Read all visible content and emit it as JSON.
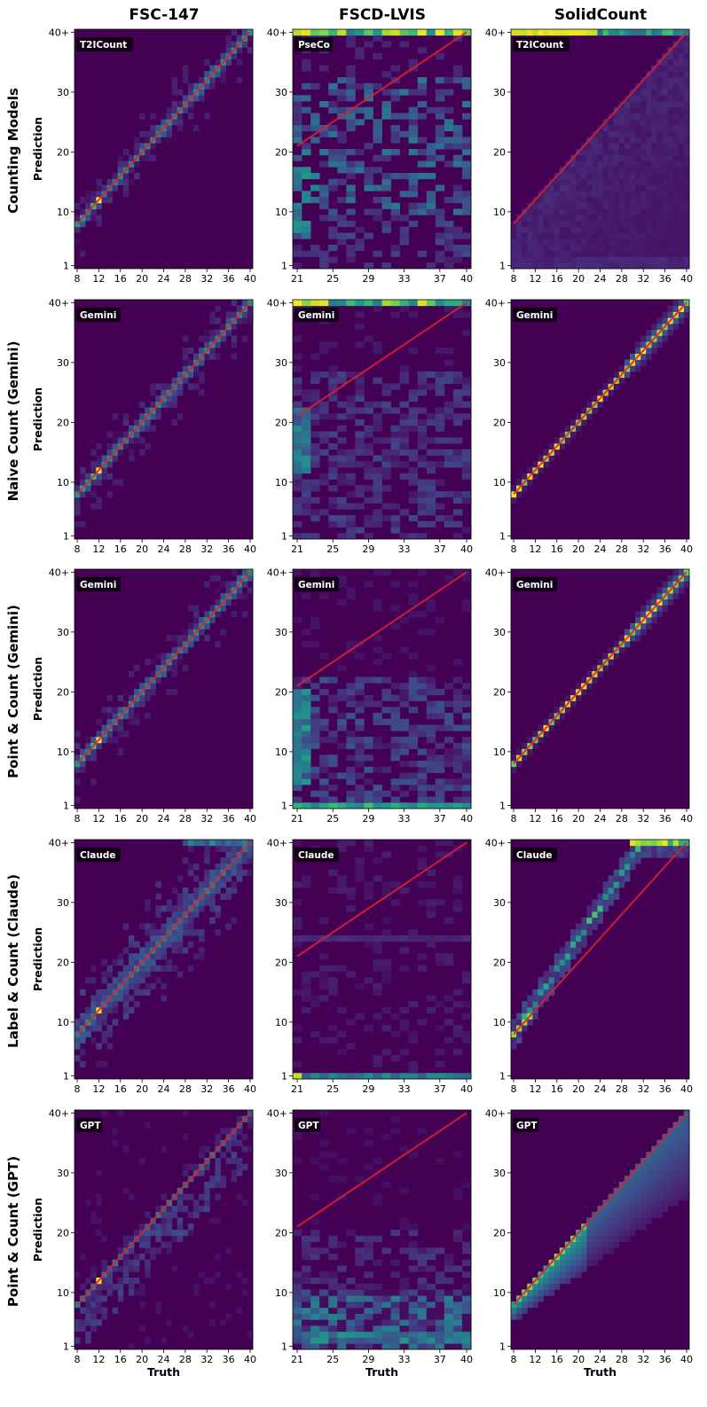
{
  "figure": {
    "column_titles": [
      "FSC-147",
      "FSCD-LVIS",
      "SolidCount"
    ],
    "row_labels": [
      "Counting Models",
      "Naive Count (Gemini)",
      "Point & Count (Gemini)",
      "Label & Count (Claude)",
      "Point & Count (GPT)"
    ],
    "ylabel": "Prediction",
    "xlabel": "Truth",
    "colors": {
      "background": "#440154",
      "diagonal": "#dc2031",
      "badge_bg": "#000000"
    }
  },
  "chart_data": [
    {
      "type": "heatmap",
      "row": 0,
      "col": 0,
      "model": "T2ICount",
      "dataset": "FSC-147",
      "title": "",
      "xlabel": "",
      "ylabel": "Prediction",
      "x_range": [
        8,
        40
      ],
      "y_range": [
        1,
        40
      ],
      "x_ticks": [
        "8",
        "12",
        "16",
        "20",
        "24",
        "28",
        "32",
        "36",
        "40"
      ],
      "y_ticks": [
        "1",
        "10",
        "20",
        "30",
        "40+"
      ],
      "pattern": "diagonal_tight",
      "peak": 12
    },
    {
      "type": "heatmap",
      "row": 0,
      "col": 1,
      "model": "PseCo",
      "dataset": "FSCD-LVIS",
      "title": "",
      "xlabel": "",
      "ylabel": "",
      "x_range": [
        21,
        40
      ],
      "y_range": [
        1,
        40
      ],
      "x_ticks": [
        "21",
        "25",
        "29",
        "33",
        "37",
        "40"
      ],
      "y_ticks": [
        "1",
        "10",
        "20",
        "30",
        "40+"
      ],
      "pattern": "scatter_overflow"
    },
    {
      "type": "heatmap",
      "row": 0,
      "col": 2,
      "model": "T2ICount",
      "dataset": "SolidCount",
      "title": "",
      "xlabel": "",
      "ylabel": "",
      "x_range": [
        8,
        40
      ],
      "y_range": [
        1,
        40
      ],
      "x_ticks": [
        "8",
        "12",
        "16",
        "20",
        "24",
        "28",
        "32",
        "36",
        "40"
      ],
      "y_ticks": [
        "1",
        "10",
        "20",
        "30",
        "40+"
      ],
      "pattern": "diffuse_overflow"
    },
    {
      "type": "heatmap",
      "row": 1,
      "col": 0,
      "model": "Gemini",
      "dataset": "FSC-147",
      "title": "",
      "xlabel": "",
      "ylabel": "Prediction",
      "x_range": [
        8,
        40
      ],
      "y_range": [
        1,
        40
      ],
      "x_ticks": [
        "8",
        "12",
        "16",
        "20",
        "24",
        "28",
        "32",
        "36",
        "40"
      ],
      "y_ticks": [
        "1",
        "10",
        "20",
        "30",
        "40+"
      ],
      "pattern": "diagonal_tight",
      "peak": 12
    },
    {
      "type": "heatmap",
      "row": 1,
      "col": 1,
      "model": "Gemini",
      "dataset": "FSCD-LVIS",
      "title": "",
      "xlabel": "",
      "ylabel": "",
      "x_range": [
        21,
        40
      ],
      "y_range": [
        1,
        40
      ],
      "x_ticks": [
        "21",
        "25",
        "29",
        "33",
        "37",
        "40"
      ],
      "y_ticks": [
        "1",
        "10",
        "20",
        "30",
        "40+"
      ],
      "pattern": "under_overflow"
    },
    {
      "type": "heatmap",
      "row": 1,
      "col": 2,
      "model": "Gemini",
      "dataset": "SolidCount",
      "title": "",
      "xlabel": "",
      "ylabel": "",
      "x_range": [
        8,
        40
      ],
      "y_range": [
        1,
        40
      ],
      "x_ticks": [
        "8",
        "12",
        "16",
        "20",
        "24",
        "28",
        "32",
        "36",
        "40"
      ],
      "y_ticks": [
        "1",
        "10",
        "20",
        "30",
        "40+"
      ],
      "pattern": "diagonal_perfect"
    },
    {
      "type": "heatmap",
      "row": 2,
      "col": 0,
      "model": "Gemini",
      "dataset": "FSC-147",
      "title": "",
      "xlabel": "",
      "ylabel": "Prediction",
      "x_range": [
        8,
        40
      ],
      "y_range": [
        1,
        40
      ],
      "x_ticks": [
        "8",
        "12",
        "16",
        "20",
        "24",
        "28",
        "32",
        "36",
        "40"
      ],
      "y_ticks": [
        "1",
        "10",
        "20",
        "30",
        "40+"
      ],
      "pattern": "diagonal_tight",
      "peak": 12
    },
    {
      "type": "heatmap",
      "row": 2,
      "col": 1,
      "model": "Gemini",
      "dataset": "FSCD-LVIS",
      "title": "",
      "xlabel": "",
      "ylabel": "",
      "x_range": [
        21,
        40
      ],
      "y_range": [
        1,
        40
      ],
      "x_ticks": [
        "21",
        "25",
        "29",
        "33",
        "37",
        "40"
      ],
      "y_ticks": [
        "1",
        "10",
        "20",
        "30",
        "40+"
      ],
      "pattern": "under_one"
    },
    {
      "type": "heatmap",
      "row": 2,
      "col": 2,
      "model": "Gemini",
      "dataset": "SolidCount",
      "title": "",
      "xlabel": "",
      "ylabel": "",
      "x_range": [
        8,
        40
      ],
      "y_range": [
        1,
        40
      ],
      "x_ticks": [
        "8",
        "12",
        "16",
        "20",
        "24",
        "28",
        "32",
        "36",
        "40"
      ],
      "y_ticks": [
        "1",
        "10",
        "20",
        "30",
        "40+"
      ],
      "pattern": "diagonal_perfect"
    },
    {
      "type": "heatmap",
      "row": 3,
      "col": 0,
      "model": "Claude",
      "dataset": "FSC-147",
      "title": "",
      "xlabel": "",
      "ylabel": "Prediction",
      "x_range": [
        8,
        40
      ],
      "y_range": [
        1,
        40
      ],
      "x_ticks": [
        "8",
        "12",
        "16",
        "20",
        "24",
        "28",
        "32",
        "36",
        "40"
      ],
      "y_ticks": [
        "1",
        "10",
        "20",
        "30",
        "40+"
      ],
      "pattern": "diagonal_noisy"
    },
    {
      "type": "heatmap",
      "row": 3,
      "col": 1,
      "model": "Claude",
      "dataset": "FSCD-LVIS",
      "title": "",
      "xlabel": "",
      "ylabel": "",
      "x_range": [
        21,
        40
      ],
      "y_range": [
        1,
        40
      ],
      "x_ticks": [
        "21",
        "25",
        "29",
        "33",
        "37",
        "40"
      ],
      "y_ticks": [
        "1",
        "10",
        "20",
        "30",
        "40+"
      ],
      "pattern": "under_one_sparse"
    },
    {
      "type": "heatmap",
      "row": 3,
      "col": 2,
      "model": "Claude",
      "dataset": "SolidCount",
      "title": "",
      "xlabel": "",
      "ylabel": "",
      "x_range": [
        8,
        40
      ],
      "y_range": [
        1,
        40
      ],
      "x_ticks": [
        "8",
        "12",
        "16",
        "20",
        "24",
        "28",
        "32",
        "36",
        "40"
      ],
      "y_ticks": [
        "1",
        "10",
        "20",
        "30",
        "40+"
      ],
      "pattern": "over_count"
    },
    {
      "type": "heatmap",
      "row": 4,
      "col": 0,
      "model": "GPT",
      "dataset": "FSC-147",
      "title": "",
      "xlabel": "Truth",
      "ylabel": "Prediction",
      "x_range": [
        8,
        40
      ],
      "y_range": [
        1,
        40
      ],
      "x_ticks": [
        "8",
        "12",
        "16",
        "20",
        "24",
        "28",
        "32",
        "36",
        "40"
      ],
      "y_ticks": [
        "1",
        "10",
        "20",
        "30",
        "40+"
      ],
      "pattern": "diagonal_under"
    },
    {
      "type": "heatmap",
      "row": 4,
      "col": 1,
      "model": "GPT",
      "dataset": "FSCD-LVIS",
      "title": "",
      "xlabel": "Truth",
      "ylabel": "",
      "x_range": [
        21,
        40
      ],
      "y_range": [
        1,
        40
      ],
      "x_ticks": [
        "21",
        "25",
        "29",
        "33",
        "37",
        "40"
      ],
      "y_ticks": [
        "1",
        "10",
        "20",
        "30",
        "40+"
      ],
      "pattern": "under_low"
    },
    {
      "type": "heatmap",
      "row": 4,
      "col": 2,
      "model": "GPT",
      "dataset": "SolidCount",
      "title": "",
      "xlabel": "Truth",
      "ylabel": "",
      "x_range": [
        8,
        40
      ],
      "y_range": [
        1,
        40
      ],
      "x_ticks": [
        "8",
        "12",
        "16",
        "20",
        "24",
        "28",
        "32",
        "36",
        "40"
      ],
      "y_ticks": [
        "1",
        "10",
        "20",
        "30",
        "40+"
      ],
      "pattern": "under_count"
    }
  ]
}
